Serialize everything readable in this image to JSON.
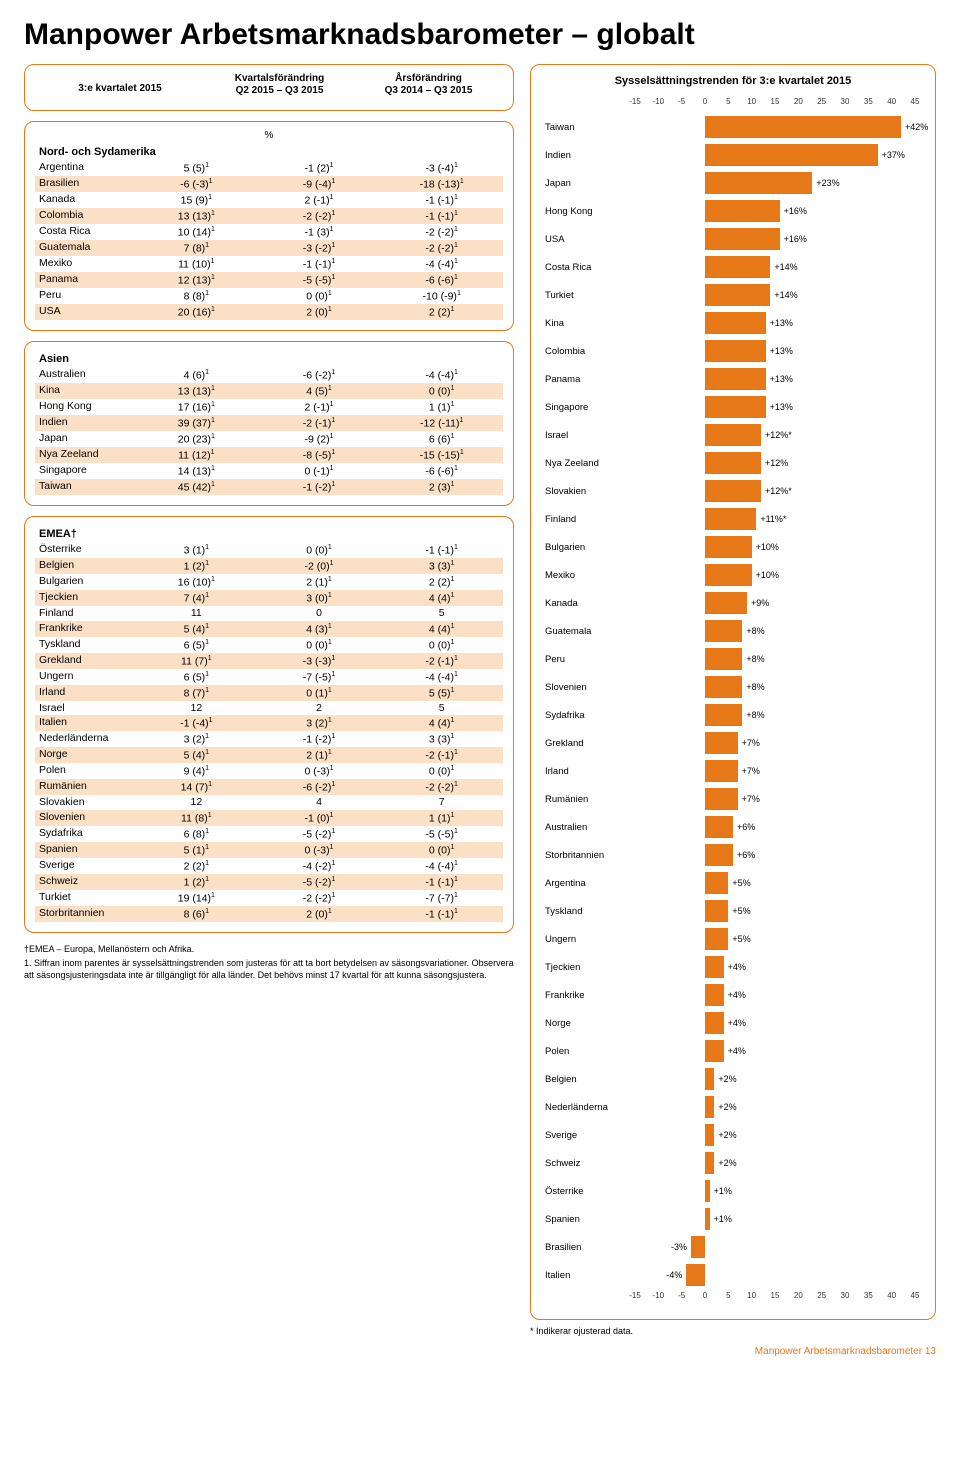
{
  "title": "Manpower Arbetsmarknadsbarometer – globalt",
  "table_headers": {
    "c1": "3:e kvartalet 2015",
    "c2_l1": "Kvartalsförändring",
    "c2_l2": "Q2 2015 – Q3 2015",
    "c3_l1": "Årsförändring",
    "c3_l2": "Q3 2014 – Q3 2015",
    "pct": "%"
  },
  "sections": [
    {
      "name": "Nord- och Sydamerika",
      "rows": [
        [
          "Argentina",
          "5 (5)",
          "-1 (2)",
          "-3 (-4)",
          1
        ],
        [
          "Brasilien",
          "-6 (-3)",
          "-9 (-4)",
          "-18 (-13)",
          1
        ],
        [
          "Kanada",
          "15 (9)",
          "2 (-1)",
          "-1 (-1)",
          1
        ],
        [
          "Colombia",
          "13 (13)",
          "-2 (-2)",
          "-1 (-1)",
          1
        ],
        [
          "Costa Rica",
          "10 (14)",
          "-1 (3)",
          "-2 (-2)",
          1
        ],
        [
          "Guatemala",
          "7 (8)",
          "-3 (-2)",
          "-2 (-2)",
          1
        ],
        [
          "Mexiko",
          "11 (10)",
          "-1 (-1)",
          "-4 (-4)",
          1
        ],
        [
          "Panama",
          "12 (13)",
          "-5 (-5)",
          "-6 (-6)",
          1
        ],
        [
          "Peru",
          "8 (8)",
          "0 (0)",
          "-10 (-9)",
          1
        ],
        [
          "USA",
          "20 (16)",
          "2 (0)",
          "2 (2)",
          1
        ]
      ]
    },
    {
      "name": "Asien",
      "rows": [
        [
          "Australien",
          "4 (6)",
          "-6 (-2)",
          "-4 (-4)",
          1
        ],
        [
          "Kina",
          "13 (13)",
          "4 (5)",
          "0 (0)",
          1
        ],
        [
          "Hong Kong",
          "17 (16)",
          "2 (-1)",
          "1 (1)",
          1
        ],
        [
          "Indien",
          "39 (37)",
          "-2 (-1)",
          "-12 (-11)",
          1
        ],
        [
          "Japan",
          "20 (23)",
          "-9 (2)",
          "6 (6)",
          1
        ],
        [
          "Nya Zeeland",
          "11 (12)",
          "-8 (-5)",
          "-15 (-15)",
          1
        ],
        [
          "Singapore",
          "14 (13)",
          "0 (-1)",
          "-6 (-6)",
          1
        ],
        [
          "Taiwan",
          "45 (42)",
          "-1 (-2)",
          "2 (3)",
          1
        ]
      ]
    },
    {
      "name": "EMEA†",
      "rows": [
        [
          "Österrike",
          "3 (1)",
          "0 (0)",
          "-1 (-1)",
          1
        ],
        [
          "Belgien",
          "1 (2)",
          "-2 (0)",
          "3 (3)",
          1
        ],
        [
          "Bulgarien",
          "16 (10)",
          "2 (1)",
          "2 (2)",
          1
        ],
        [
          "Tjeckien",
          "7 (4)",
          "3 (0)",
          "4 (4)",
          1
        ],
        [
          "Finland",
          "11",
          "0",
          "5",
          0
        ],
        [
          "Frankrike",
          "5 (4)",
          "4 (3)",
          "4 (4)",
          1
        ],
        [
          "Tyskland",
          "6 (5)",
          "0 (0)",
          "0 (0)",
          1
        ],
        [
          "Grekland",
          "11 (7)",
          "-3 (-3)",
          "-2 (-1)",
          1
        ],
        [
          "Ungern",
          "6 (5)",
          "-7 (-5)",
          "-4 (-4)",
          1
        ],
        [
          "Irland",
          "8 (7)",
          "0 (1)",
          "5 (5)",
          1
        ],
        [
          "Israel",
          "12",
          "2",
          "5",
          0
        ],
        [
          "Italien",
          "-1 (-4)",
          "3 (2)",
          "4 (4)",
          1
        ],
        [
          "Nederländerna",
          "3 (2)",
          "-1 (-2)",
          "3 (3)",
          1
        ],
        [
          "Norge",
          "5 (4)",
          "2 (1)",
          "-2 (-1)",
          1
        ],
        [
          "Polen",
          "9 (4)",
          "0 (-3)",
          "0 (0)",
          1
        ],
        [
          "Rumänien",
          "14 (7)",
          "-6 (-2)",
          "-2 (-2)",
          1
        ],
        [
          "Slovakien",
          "12",
          "4",
          "7",
          0
        ],
        [
          "Slovenien",
          "11 (8)",
          "-1 (0)",
          "1 (1)",
          1
        ],
        [
          "Sydafrika",
          "6 (8)",
          "-5 (-2)",
          "-5 (-5)",
          1
        ],
        [
          "Spanien",
          "5 (1)",
          "0 (-3)",
          "0 (0)",
          1
        ],
        [
          "Sverige",
          "2 (2)",
          "-4 (-2)",
          "-4 (-4)",
          1
        ],
        [
          "Schweiz",
          "1 (2)",
          "-5 (-2)",
          "-1 (-1)",
          1
        ],
        [
          "Turkiet",
          "19 (14)",
          "-2 (-2)",
          "-7 (-7)",
          1
        ],
        [
          "Storbritannien",
          "8 (6)",
          "2 (0)",
          "-1 (-1)",
          1
        ]
      ]
    }
  ],
  "left_footnotes": [
    "†EMEA – Europa, Mellanöstern och Afrika.",
    "1. Siffran inom parentes är sysselsättningstrenden som justeras för att ta bort betydelsen av säsongsvariationer. Observera att säsongsjusteringsdata inte är tillgängligt för alla länder. Det behövs minst 17 kvartal för att kunna säsongsjustera."
  ],
  "chart": {
    "title": "Sysselsättningstrenden för 3:e kvartalet 2015",
    "xmin": -15,
    "xmax": 45,
    "xstep": 5,
    "bar_color": "#e67817",
    "bars": [
      [
        "Taiwan",
        42,
        "+42%"
      ],
      [
        "Indien",
        37,
        "+37%"
      ],
      [
        "Japan",
        23,
        "+23%"
      ],
      [
        "Hong Kong",
        16,
        "+16%"
      ],
      [
        "USA",
        16,
        "+16%"
      ],
      [
        "Costa Rica",
        14,
        "+14%"
      ],
      [
        "Turkiet",
        14,
        "+14%"
      ],
      [
        "Kina",
        13,
        "+13%"
      ],
      [
        "Colombia",
        13,
        "+13%"
      ],
      [
        "Panama",
        13,
        "+13%"
      ],
      [
        "Singapore",
        13,
        "+13%"
      ],
      [
        "Israel",
        12,
        "+12%*"
      ],
      [
        "Nya Zeeland",
        12,
        "+12%"
      ],
      [
        "Slovakien",
        12,
        "+12%*"
      ],
      [
        "Finland",
        11,
        "+11%*"
      ],
      [
        "Bulgarien",
        10,
        "+10%"
      ],
      [
        "Mexiko",
        10,
        "+10%"
      ],
      [
        "Kanada",
        9,
        "+9%"
      ],
      [
        "Guatemala",
        8,
        "+8%"
      ],
      [
        "Peru",
        8,
        "+8%"
      ],
      [
        "Slovenien",
        8,
        "+8%"
      ],
      [
        "Sydafrika",
        8,
        "+8%"
      ],
      [
        "Grekland",
        7,
        "+7%"
      ],
      [
        "Irland",
        7,
        "+7%"
      ],
      [
        "Rumänien",
        7,
        "+7%"
      ],
      [
        "Australien",
        6,
        "+6%"
      ],
      [
        "Storbritannien",
        6,
        "+6%"
      ],
      [
        "Argentina",
        5,
        "+5%"
      ],
      [
        "Tyskland",
        5,
        "+5%"
      ],
      [
        "Ungern",
        5,
        "+5%"
      ],
      [
        "Tjeckien",
        4,
        "+4%"
      ],
      [
        "Frankrike",
        4,
        "+4%"
      ],
      [
        "Norge",
        4,
        "+4%"
      ],
      [
        "Polen",
        4,
        "+4%"
      ],
      [
        "Belgien",
        2,
        "+2%"
      ],
      [
        "Nederländerna",
        2,
        "+2%"
      ],
      [
        "Sverige",
        2,
        "+2%"
      ],
      [
        "Schweiz",
        2,
        "+2%"
      ],
      [
        "Österrike",
        1,
        "+1%"
      ],
      [
        "Spanien",
        1,
        "+1%"
      ],
      [
        "Brasilien",
        -3,
        "-3%"
      ],
      [
        "Italien",
        -4,
        "-4%"
      ]
    ]
  },
  "right_footnote": "* Indikerar ojusterad data.",
  "page_footer": "Manpower Arbetsmarknadsbarometer 13"
}
